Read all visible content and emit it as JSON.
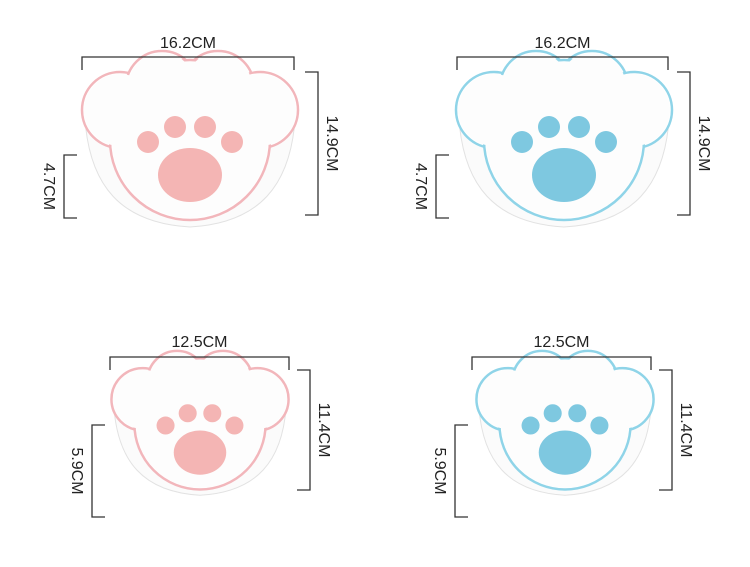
{
  "bowls": [
    {
      "width": "16.2CM",
      "height": "14.9CM",
      "depth": "4.7CM"
    },
    {
      "width": "16.2CM",
      "height": "14.9CM",
      "depth": "4.7CM"
    },
    {
      "width": "12.5CM",
      "height": "11.4CM",
      "depth": "5.9CM"
    },
    {
      "width": "12.5CM",
      "height": "11.4CM",
      "depth": "5.9CM"
    }
  ]
}
